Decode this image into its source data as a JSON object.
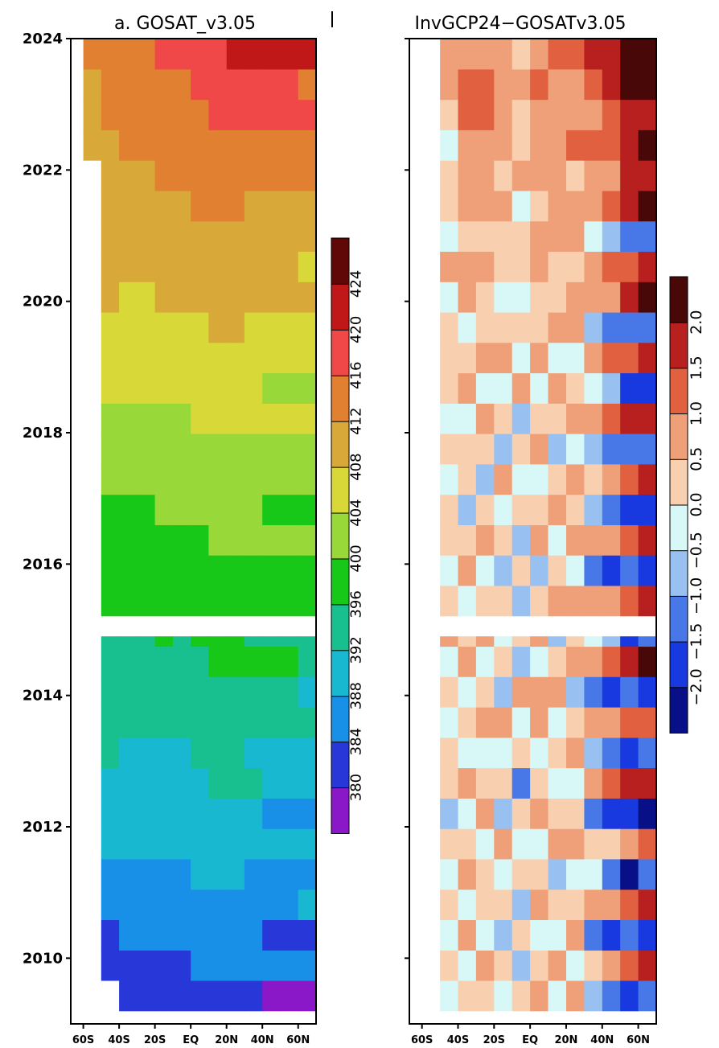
{
  "chart_data": [
    {
      "type": "heatmap",
      "title": "a. GOSAT_v3.05",
      "x_ticks": [
        "60S",
        "40S",
        "20S",
        "EQ",
        "20N",
        "40N",
        "60N"
      ],
      "x_values": [
        -60,
        -40,
        -20,
        0,
        20,
        40,
        60
      ],
      "xlim": [
        -67,
        70
      ],
      "y_ticks": [
        "2010",
        "2012",
        "2014",
        "2016",
        "2018",
        "2020",
        "2022",
        "2024"
      ],
      "y_values": [
        2010,
        2012,
        2014,
        2016,
        2018,
        2020,
        2022,
        2024
      ],
      "ylim": [
        2009.0,
        2024.0
      ],
      "data_gap": [
        2014.9,
        2015.1
      ],
      "colorbar": {
        "labels": [
          "380",
          "384",
          "388",
          "392",
          "396",
          "400",
          "404",
          "408",
          "412",
          "416",
          "420",
          "424"
        ],
        "colors": [
          "#8b18c8",
          "#2838d8",
          "#1890e8",
          "#18b8d0",
          "#18c090",
          "#18c818",
          "#98d838",
          "#d8d838",
          "#d8a838",
          "#e08030",
          "#f04848",
          "#c01818",
          "#600808"
        ]
      },
      "lat_rows": [
        {
          "lat": -55,
          "v": [
            null,
            null,
            null,
            null,
            null,
            null,
            null,
            null,
            null,
            null,
            null,
            null,
            null,
            null,
            null,
            null,
            null,
            null,
            null,
            null,
            null,
            null,
            null,
            null,
            null,
            null,
            null,
            null,
            412,
            412,
            412,
            416
          ]
        },
        {
          "lat": -45,
          "v": [
            null,
            383,
            385,
            388,
            389,
            390,
            391,
            392,
            394,
            394,
            395,
            397,
            397,
            398,
            398,
            400,
            401,
            403,
            404,
            405,
            406,
            407,
            409,
            410,
            410,
            411,
            412,
            413,
            413,
            414,
            415,
            416
          ]
        },
        {
          "lat": -35,
          "v": [
            383,
            384,
            386,
            387,
            389,
            390,
            391,
            392,
            393,
            394,
            395,
            396,
            397,
            398,
            399,
            400,
            401,
            402,
            403,
            404,
            406,
            407,
            408,
            409,
            410,
            411,
            412,
            413,
            414,
            415,
            416,
            417
          ]
        },
        {
          "lat": -25,
          "v": [
            383,
            384,
            386,
            387,
            389,
            390,
            391,
            392,
            393,
            394,
            395,
            396,
            397,
            398,
            399,
            400,
            401,
            402,
            403,
            404,
            406,
            407,
            408,
            409,
            410,
            411,
            412,
            413,
            414,
            415,
            416,
            417
          ]
        },
        {
          "lat": -15,
          "v": [
            384,
            385,
            386,
            388,
            389,
            390,
            391,
            393,
            393,
            394,
            396,
            397,
            398,
            398,
            399,
            400,
            402,
            403,
            404,
            405,
            406,
            407,
            409,
            410,
            411,
            412,
            413,
            414,
            415,
            416,
            417,
            418
          ]
        },
        {
          "lat": -5,
          "v": [
            384,
            385,
            386,
            388,
            389,
            390,
            391,
            392,
            393,
            394,
            395,
            396,
            397,
            398,
            399,
            401,
            402,
            403,
            404,
            405,
            406,
            407,
            409,
            410,
            411,
            412,
            413,
            414,
            415,
            416,
            417,
            418
          ]
        },
        {
          "lat": 5,
          "v": [
            385,
            386,
            387,
            389,
            390,
            391,
            392,
            393,
            394,
            395,
            396,
            397,
            398,
            399,
            400,
            401,
            402,
            404,
            405,
            406,
            407,
            408,
            409,
            410,
            411,
            413,
            414,
            415,
            416,
            417,
            418,
            420
          ]
        },
        {
          "lat": 15,
          "v": [
            385,
            387,
            388,
            389,
            390,
            392,
            392,
            394,
            394,
            396,
            397,
            398,
            398,
            400,
            400,
            402,
            403,
            404,
            405,
            407,
            408,
            409,
            410,
            411,
            412,
            413,
            414,
            416,
            417,
            418,
            419,
            421
          ]
        },
        {
          "lat": 25,
          "v": [
            385,
            387,
            388,
            389,
            390,
            391,
            392,
            394,
            394,
            395,
            397,
            398,
            398,
            400,
            401,
            402,
            403,
            404,
            405,
            407,
            407,
            409,
            410,
            411,
            412,
            413,
            414,
            415,
            417,
            418,
            419,
            422
          ]
        },
        {
          "lat": 35,
          "v": [
            383,
            387,
            386,
            389,
            388,
            391,
            390,
            394,
            392,
            395,
            396,
            398,
            397,
            400,
            399,
            402,
            402,
            404,
            403,
            407,
            406,
            409,
            409,
            411,
            411,
            413,
            413,
            415,
            417,
            418,
            419,
            422
          ]
        },
        {
          "lat": 45,
          "v": [
            381,
            387,
            384,
            389,
            387,
            391,
            389,
            393,
            391,
            395,
            394,
            398,
            396,
            400,
            398,
            402,
            400,
            404,
            402,
            406,
            405,
            409,
            408,
            411,
            410,
            413,
            413,
            415,
            415,
            418,
            418,
            422
          ]
        },
        {
          "lat": 55,
          "v": [
            380,
            387,
            383,
            389,
            386,
            391,
            389,
            393,
            391,
            395,
            394,
            398,
            396,
            399,
            399,
            402,
            400,
            404,
            402,
            407,
            404,
            408,
            407,
            411,
            410,
            413,
            412,
            416,
            415,
            418,
            418,
            424
          ]
        },
        {
          "lat": 65,
          "v": [
            379,
            387,
            383,
            390,
            386,
            391,
            388,
            393,
            390,
            395,
            393,
            397,
            395,
            400,
            398,
            402,
            400,
            404,
            402,
            406,
            404,
            408,
            406,
            411,
            408,
            413,
            411,
            416,
            414,
            419,
            417,
            423
          ]
        }
      ]
    },
    {
      "type": "heatmap",
      "title": "InvGCP24−GOSATv3.05",
      "x_ticks": [
        "60S",
        "40S",
        "20S",
        "EQ",
        "20N",
        "40N",
        "60N"
      ],
      "x_values": [
        -60,
        -40,
        -20,
        0,
        20,
        40,
        60
      ],
      "xlim": [
        -67,
        70
      ],
      "ylim": [
        2009.0,
        2024.0
      ],
      "data_gap": [
        2014.9,
        2015.1
      ],
      "colorbar": {
        "labels": [
          "−2.0",
          "−1.5",
          "−1.0",
          "−0.5",
          "0.0",
          "0.5",
          "1.0",
          "1.5",
          "2.0"
        ],
        "colors": [
          "#081088",
          "#1838e0",
          "#4878e8",
          "#98c0f0",
          "#d8f8f8",
          "#f8d0b0",
          "#f0a078",
          "#e06040",
          "#b82020",
          "#480808"
        ]
      },
      "lat_rows": [
        {
          "lat": -45,
          "v": [
            -0.2,
            0.1,
            -0.4,
            0.3,
            -0.1,
            0.2,
            -0.6,
            0.4,
            0.1,
            -0.3,
            0.2,
            -0.2,
            0.5,
            0.0,
            -0.4,
            0.3,
            0.1,
            -0.2,
            0.4,
            -0.5,
            0.2,
            0.0,
            0.3,
            -0.1,
            0.5,
            -0.3,
            0.2,
            0.4,
            -0.2,
            0.3,
            0.6,
            0.8
          ]
        },
        {
          "lat": -35,
          "v": [
            0.4,
            -0.3,
            0.6,
            -0.2,
            0.5,
            0.2,
            -0.4,
            0.7,
            -0.1,
            0.3,
            -0.5,
            0.6,
            0.2,
            -0.3,
            0.5,
            0.1,
            -0.6,
            0.4,
            0.2,
            -0.2,
            0.6,
            0.3,
            -0.4,
            0.5,
            0.8,
            0.2,
            0.6,
            0.9,
            0.7,
            1.0,
            1.2,
            0.9
          ]
        },
        {
          "lat": -25,
          "v": [
            0.2,
            0.5,
            -0.3,
            0.4,
            0.1,
            -0.5,
            0.6,
            0.3,
            -0.2,
            0.7,
            0.1,
            -0.4,
            0.5,
            0.3,
            -0.2,
            0.6,
            0.2,
            -0.7,
            0.4,
            0.5,
            -0.1,
            0.6,
            0.3,
            0.2,
            0.7,
            0.4,
            0.9,
            0.6,
            0.8,
            1.1,
            1.0,
            0.7
          ]
        },
        {
          "lat": -15,
          "v": [
            -0.5,
            0.3,
            -0.8,
            0.2,
            -0.4,
            0.6,
            -0.9,
            0.1,
            -0.3,
            0.5,
            -0.7,
            0.2,
            -0.5,
            0.4,
            -0.8,
            0.3,
            -0.2,
            0.5,
            -0.6,
            0.2,
            -0.4,
            0.6,
            0.1,
            -0.3,
            0.4,
            0.2,
            0.5,
            0.3,
            0.6,
            0.5,
            0.8,
            0.6
          ]
        },
        {
          "lat": -5,
          "v": [
            0.1,
            -0.6,
            0.4,
            -0.9,
            0.2,
            -0.5,
            0.3,
            -1.1,
            0.2,
            -0.4,
            0.5,
            -0.8,
            0.3,
            -0.6,
            0.2,
            -1.0,
            0.4,
            -0.3,
            0.2,
            -0.7,
            0.5,
            -0.2,
            0.3,
            -0.5,
            0.2,
            0.4,
            -0.3,
            0.5,
            0.3,
            0.2,
            0.6,
            0.4
          ]
        },
        {
          "lat": 5,
          "v": [
            0.6,
            0.2,
            -0.3,
            0.8,
            0.4,
            -0.5,
            0.7,
            0.3,
            -0.4,
            0.9,
            0.5,
            -0.2,
            0.8,
            0.3,
            -0.6,
            0.7,
            0.4,
            -0.3,
            0.9,
            0.2,
            -0.5,
            0.6,
            0.4,
            0.1,
            0.8,
            0.5,
            0.3,
            0.9,
            0.6,
            0.7,
            1.0,
            0.8
          ]
        },
        {
          "lat": 15,
          "v": [
            -0.4,
            0.5,
            -0.2,
            0.3,
            -0.7,
            0.6,
            0.2,
            -0.5,
            0.4,
            -0.3,
            0.6,
            0.1,
            -0.8,
            0.5,
            0.2,
            -0.4,
            0.7,
            0.3,
            -0.6,
            0.4,
            0.5,
            -0.3,
            0.6,
            0.4,
            0.3,
            0.7,
            0.5,
            0.8,
            0.6,
            0.9,
            0.7,
            1.1
          ]
        },
        {
          "lat": 25,
          "v": [
            0.8,
            -0.3,
            0.6,
            0.2,
            -0.5,
            0.9,
            0.3,
            -0.2,
            0.7,
            0.4,
            -0.6,
            0.8,
            0.3,
            0.5,
            -0.4,
            0.9,
            0.2,
            0.6,
            -0.3,
            0.7,
            0.4,
            -0.2,
            0.8,
            0.5,
            0.3,
            0.9,
            0.6,
            0.4,
            1.0,
            0.7,
            0.9,
            1.3
          ]
        },
        {
          "lat": 35,
          "v": [
            -0.8,
            0.4,
            -1.2,
            0.6,
            -0.5,
            0.3,
            -1.4,
            0.7,
            -0.6,
            0.5,
            -1.1,
            0.8,
            -0.4,
            0.6,
            -1.3,
            0.5,
            -0.7,
            0.4,
            -1.0,
            0.6,
            -0.3,
            0.8,
            -0.9,
            0.5,
            0.7,
            -0.4,
            0.9,
            0.6,
            1.1,
            0.8,
            1.2,
            1.5
          ]
        },
        {
          "lat": 45,
          "v": [
            -1.5,
            0.6,
            -1.8,
            0.9,
            -1.1,
            0.4,
            -1.9,
            1.0,
            -1.3,
            0.7,
            -1.6,
            1.1,
            -0.9,
            0.8,
            -1.7,
            0.6,
            -1.2,
            0.9,
            -1.5,
            1.0,
            -0.8,
            1.2,
            -1.3,
            0.7,
            1.1,
            -0.9,
            1.3,
            0.8,
            1.4,
            1.0,
            1.5,
            1.8
          ]
        },
        {
          "lat": 55,
          "v": [
            -1.8,
            1.2,
            -1.5,
            1.4,
            -2.1,
            0.9,
            -1.6,
            1.5,
            -1.9,
            1.1,
            -1.4,
            1.6,
            -2.0,
            1.2,
            -1.5,
            1.3,
            -1.8,
            1.0,
            -1.3,
            1.5,
            -1.7,
            1.4,
            -1.1,
            1.6,
            1.3,
            -1.2,
            1.7,
            1.5,
            1.9,
            1.6,
            2.0,
            2.2
          ]
        },
        {
          "lat": 65,
          "v": [
            -1.2,
            1.6,
            -1.9,
            1.8,
            -1.4,
            1.3,
            -2.2,
            1.9,
            -1.5,
            1.4,
            -1.8,
            2.0,
            -1.3,
            1.7,
            -2.0,
            1.5,
            -1.6,
            1.8,
            -1.4,
            1.9,
            -1.9,
            1.6,
            -1.2,
            2.1,
            1.8,
            -1.5,
            2.0,
            1.7,
            2.2,
            1.9,
            2.3,
            2.4
          ]
        }
      ]
    }
  ]
}
